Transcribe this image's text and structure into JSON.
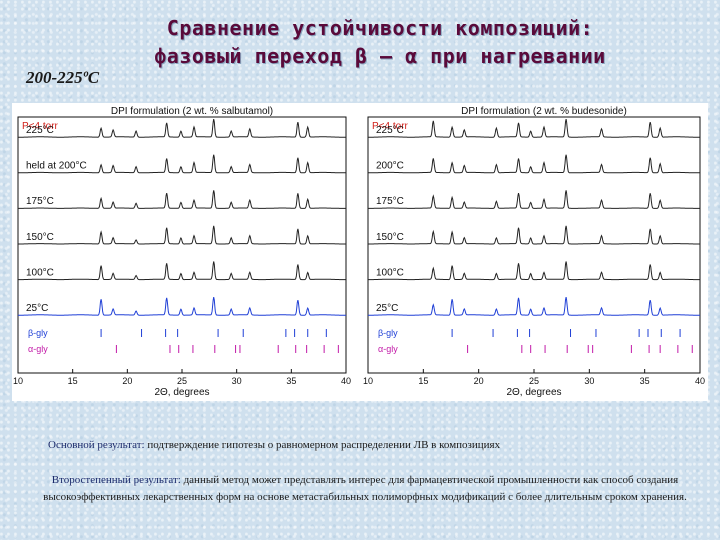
{
  "header": {
    "title_line1": "Сравнение устойчивости композиций:",
    "title_line2": "фазовый переход β – α при нагревании",
    "temperature_range": "200-225ºС"
  },
  "colors": {
    "title": "#5a0a3a",
    "black_trace": "#222222",
    "blue_trace": "#1f3fd6",
    "gly_beta": "#1f3fd6",
    "gly_alpha": "#c21aa8"
  },
  "chart_data": [
    {
      "type": "line",
      "title": "DPI formulation (2 wt. % salbutamol)",
      "pressure_label": "P<4 torr",
      "xlabel": "2Θ, degrees",
      "xlim": [
        10,
        40
      ],
      "x_ticks": [
        "10",
        "15",
        "20",
        "25",
        "30",
        "35",
        "40"
      ],
      "series": [
        {
          "name": "225°C",
          "color": "black",
          "peaks": [
            [
              17.6,
              0.45
            ],
            [
              18.7,
              0.35
            ],
            [
              20.8,
              0.3
            ],
            [
              23.6,
              0.7
            ],
            [
              24.9,
              0.3
            ],
            [
              26.1,
              0.5
            ],
            [
              27.9,
              0.9
            ],
            [
              29.5,
              0.3
            ],
            [
              31.2,
              0.4
            ],
            [
              35.6,
              0.75
            ],
            [
              36.5,
              0.5
            ]
          ]
        },
        {
          "name": "held at 200°C",
          "color": "black",
          "peaks": [
            [
              17.6,
              0.4
            ],
            [
              18.7,
              0.35
            ],
            [
              20.8,
              0.3
            ],
            [
              23.6,
              0.7
            ],
            [
              24.9,
              0.3
            ],
            [
              26.1,
              0.5
            ],
            [
              27.9,
              0.9
            ],
            [
              29.5,
              0.3
            ],
            [
              31.2,
              0.4
            ],
            [
              35.6,
              0.75
            ],
            [
              36.5,
              0.5
            ]
          ]
        },
        {
          "name": "175°C",
          "color": "black",
          "peaks": [
            [
              17.6,
              0.5
            ],
            [
              18.7,
              0.3
            ],
            [
              20.8,
              0.25
            ],
            [
              23.6,
              0.75
            ],
            [
              24.9,
              0.3
            ],
            [
              26.1,
              0.4
            ],
            [
              27.9,
              0.9
            ],
            [
              29.5,
              0.3
            ],
            [
              31.2,
              0.4
            ],
            [
              35.6,
              0.75
            ],
            [
              36.5,
              0.45
            ]
          ]
        },
        {
          "name": "150°C",
          "color": "black",
          "peaks": [
            [
              17.6,
              0.6
            ],
            [
              18.7,
              0.3
            ],
            [
              20.8,
              0.2
            ],
            [
              23.6,
              0.8
            ],
            [
              24.9,
              0.3
            ],
            [
              26.1,
              0.4
            ],
            [
              27.9,
              0.9
            ],
            [
              29.5,
              0.3
            ],
            [
              31.2,
              0.4
            ],
            [
              35.6,
              0.75
            ],
            [
              36.5,
              0.4
            ]
          ]
        },
        {
          "name": "100°C",
          "color": "black",
          "peaks": [
            [
              17.6,
              0.7
            ],
            [
              18.7,
              0.3
            ],
            [
              20.8,
              0.2
            ],
            [
              23.6,
              0.8
            ],
            [
              24.9,
              0.3
            ],
            [
              26.1,
              0.35
            ],
            [
              27.9,
              0.9
            ],
            [
              29.5,
              0.3
            ],
            [
              31.2,
              0.35
            ],
            [
              35.6,
              0.75
            ],
            [
              36.5,
              0.35
            ]
          ]
        },
        {
          "name": "25°C",
          "color": "blue",
          "peaks": [
            [
              17.6,
              0.8
            ],
            [
              18.7,
              0.3
            ],
            [
              20.8,
              0.2
            ],
            [
              23.6,
              0.85
            ],
            [
              24.9,
              0.3
            ],
            [
              26.1,
              0.35
            ],
            [
              27.9,
              0.9
            ],
            [
              29.5,
              0.3
            ],
            [
              31.2,
              0.35
            ],
            [
              35.6,
              0.75
            ],
            [
              36.5,
              0.35
            ]
          ]
        }
      ],
      "reference_ticks": [
        {
          "name": "β-gly",
          "color": "blue",
          "x": [
            17.6,
            21.3,
            23.5,
            24.6,
            28.3,
            30.6,
            34.5,
            35.3,
            36.5,
            38.2
          ]
        },
        {
          "name": "α-gly",
          "color": "magenta",
          "x": [
            19.0,
            23.9,
            24.7,
            26.0,
            28.0,
            29.9,
            30.3,
            33.8,
            35.4,
            36.4,
            38.0,
            39.3
          ]
        }
      ]
    },
    {
      "type": "line",
      "title": "DPI formulation (2 wt. % budesonide)",
      "pressure_label": "P<4 torr",
      "xlabel": "2Θ, degrees",
      "xlim": [
        10,
        40
      ],
      "x_ticks": [
        "10",
        "15",
        "20",
        "25",
        "30",
        "35",
        "40"
      ],
      "series": [
        {
          "name": "225°C",
          "color": "black",
          "peaks": [
            [
              15.9,
              0.8
            ],
            [
              17.6,
              0.5
            ],
            [
              18.7,
              0.35
            ],
            [
              21.6,
              0.45
            ],
            [
              23.6,
              0.7
            ],
            [
              24.7,
              0.3
            ],
            [
              25.9,
              0.5
            ],
            [
              27.9,
              0.9
            ],
            [
              31.1,
              0.4
            ],
            [
              35.5,
              0.75
            ],
            [
              36.4,
              0.45
            ]
          ]
        },
        {
          "name": "200°C",
          "color": "black",
          "peaks": [
            [
              15.9,
              0.7
            ],
            [
              17.6,
              0.5
            ],
            [
              18.7,
              0.35
            ],
            [
              21.6,
              0.4
            ],
            [
              23.6,
              0.7
            ],
            [
              24.7,
              0.3
            ],
            [
              25.9,
              0.5
            ],
            [
              27.9,
              0.9
            ],
            [
              31.1,
              0.4
            ],
            [
              35.5,
              0.75
            ],
            [
              36.4,
              0.45
            ]
          ]
        },
        {
          "name": "175°C",
          "color": "black",
          "peaks": [
            [
              15.9,
              0.6
            ],
            [
              17.6,
              0.55
            ],
            [
              18.7,
              0.3
            ],
            [
              21.6,
              0.35
            ],
            [
              23.6,
              0.75
            ],
            [
              24.7,
              0.3
            ],
            [
              25.9,
              0.45
            ],
            [
              27.9,
              0.9
            ],
            [
              31.1,
              0.4
            ],
            [
              35.5,
              0.75
            ],
            [
              36.4,
              0.4
            ]
          ]
        },
        {
          "name": "150°C",
          "color": "black",
          "peaks": [
            [
              15.9,
              0.6
            ],
            [
              17.6,
              0.6
            ],
            [
              18.7,
              0.3
            ],
            [
              21.6,
              0.3
            ],
            [
              23.6,
              0.8
            ],
            [
              24.7,
              0.3
            ],
            [
              25.9,
              0.4
            ],
            [
              27.9,
              0.9
            ],
            [
              31.1,
              0.4
            ],
            [
              35.5,
              0.75
            ],
            [
              36.4,
              0.4
            ]
          ]
        },
        {
          "name": "100°C",
          "color": "black",
          "peaks": [
            [
              15.9,
              0.55
            ],
            [
              17.6,
              0.7
            ],
            [
              18.7,
              0.3
            ],
            [
              21.6,
              0.3
            ],
            [
              23.6,
              0.8
            ],
            [
              24.7,
              0.3
            ],
            [
              25.9,
              0.35
            ],
            [
              27.9,
              0.9
            ],
            [
              31.1,
              0.35
            ],
            [
              35.5,
              0.75
            ],
            [
              36.4,
              0.35
            ]
          ]
        },
        {
          "name": "25°C",
          "color": "blue",
          "peaks": [
            [
              15.9,
              0.5
            ],
            [
              17.6,
              0.8
            ],
            [
              18.7,
              0.3
            ],
            [
              21.6,
              0.3
            ],
            [
              23.6,
              0.85
            ],
            [
              24.7,
              0.3
            ],
            [
              25.9,
              0.35
            ],
            [
              27.9,
              0.9
            ],
            [
              31.1,
              0.35
            ],
            [
              35.5,
              0.75
            ],
            [
              36.4,
              0.35
            ]
          ]
        }
      ],
      "reference_ticks": [
        {
          "name": "β-gly",
          "color": "blue",
          "x": [
            17.6,
            21.3,
            23.5,
            24.6,
            28.3,
            30.6,
            34.5,
            35.3,
            36.5,
            38.2
          ]
        },
        {
          "name": "α-gly",
          "color": "magenta",
          "x": [
            19.0,
            23.9,
            24.7,
            26.0,
            28.0,
            29.9,
            30.3,
            33.8,
            35.4,
            36.4,
            38.0,
            39.3
          ]
        }
      ]
    }
  ],
  "notes": {
    "main_lead": "Основной результат:",
    "main_text": " подтверждение гипотезы о равномерном распределении ЛВ в композициях",
    "secondary_lead": "Второстепенный результат:",
    "secondary_text": " данный метод может представлять интерес для фармацевтической промышленности как способ создания высокоэффективных лекарственных форм на основе метастабильных полиморфных модификаций с более длительным сроком хранения."
  }
}
